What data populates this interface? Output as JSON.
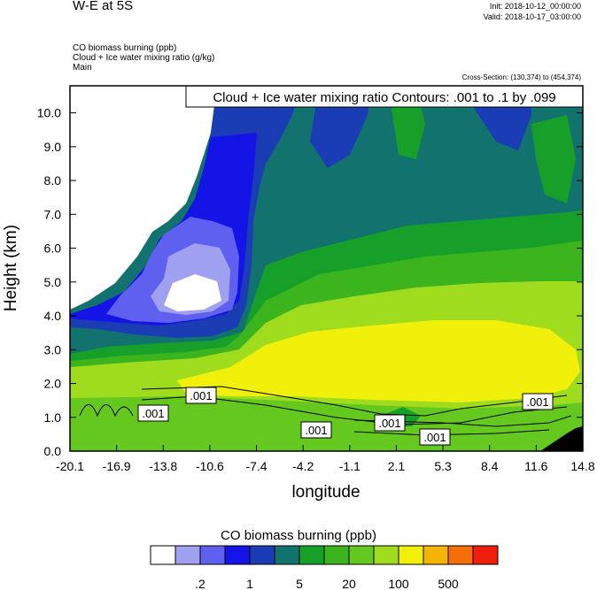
{
  "header": {
    "title": "W-E at 5S",
    "init": "Init: 2018-10-12_00:00:00",
    "valid": "Valid: 2018-10-17_03:00:00",
    "field1": "CO biomass burning   (ppb)",
    "field2": "Cloud + Ice water mixing ratio   (g/kg)",
    "field3": "Main",
    "cross_section": "Cross-Section: (130,374) to (454,374)"
  },
  "chart_data": {
    "type": "heatmap",
    "title": "W-E at 5S",
    "xlabel": "longitude",
    "ylabel": "Height (km)",
    "x_ticks": [
      "-20.1",
      "-16.9",
      "-13.8",
      "-10.6",
      "-7.4",
      "-4.2",
      "-1.1",
      "2.1",
      "5.3",
      "8.4",
      "11.6",
      "14.8"
    ],
    "x_range": [
      -20.1,
      14.8
    ],
    "y_ticks": [
      "0.0",
      "1.0",
      "2.0",
      "3.0",
      "4.0",
      "5.0",
      "6.0",
      "7.0",
      "8.0",
      "9.0",
      "10.0"
    ],
    "y_range": [
      0,
      10.8
    ],
    "contour_info": "Cloud + Ice water mixing ratio Contours: .001 to .1 by .099",
    "contour_labels": [
      ".001",
      ".001",
      ".001",
      ".001",
      ".001",
      ".001"
    ],
    "colorbar": {
      "title": "CO biomass burning  (ppb)",
      "colors": [
        "#ffffff",
        "#a0a0f0",
        "#6060f0",
        "#1414e6",
        "#1a3cb4",
        "#12736e",
        "#16a02a",
        "#3cb41e",
        "#64c81e",
        "#a0dc1e",
        "#f0f00a",
        "#f5b405",
        "#f56e0a",
        "#f01e0a"
      ],
      "labels": [
        ".2",
        "1",
        "5",
        "20",
        "100",
        "500"
      ]
    }
  }
}
